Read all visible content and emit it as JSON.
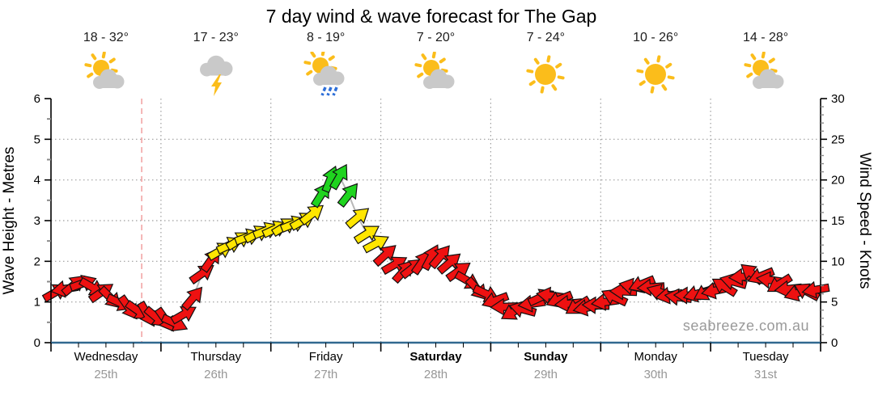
{
  "title": "7 day wind & wave forecast for The Gap",
  "watermark": "seabreeze.com.au",
  "icon_colors": {
    "sun": "#FBBD1B",
    "cloud": "#C9C9C9",
    "rain": "#2E6FD8"
  },
  "days": [
    {
      "name": "Wednesday",
      "date": "25th",
      "temp": "18 - 32°",
      "icon": "partly-cloudy",
      "weekend": false
    },
    {
      "name": "Thursday",
      "date": "26th",
      "temp": "17 - 23°",
      "icon": "thunderstorm",
      "weekend": false
    },
    {
      "name": "Friday",
      "date": "27th",
      "temp": "8 - 19°",
      "icon": "sun-cloud-rain",
      "weekend": false
    },
    {
      "name": "Saturday",
      "date": "28th",
      "temp": "7 - 20°",
      "icon": "partly-cloudy",
      "weekend": true
    },
    {
      "name": "Sunday",
      "date": "29th",
      "temp": "7 - 24°",
      "icon": "sunny",
      "weekend": true
    },
    {
      "name": "Monday",
      "date": "30th",
      "temp": "10 - 26°",
      "icon": "sunny",
      "weekend": false
    },
    {
      "name": "Tuesday",
      "date": "31st",
      "temp": "14 - 28°",
      "icon": "partly-cloudy",
      "weekend": false
    }
  ],
  "chart_data": {
    "type": "scatter",
    "marker": "wind-arrow",
    "title": "7 day wind & wave forecast for The Gap",
    "x_axis": {
      "unit": "hours",
      "range": [
        0,
        168
      ],
      "day_boundary_hours": [
        24,
        48,
        72,
        96,
        120,
        144
      ],
      "minor_tick_step_hours": 6,
      "major_tick_step_hours": 24
    },
    "left_axis": {
      "label": "Wave Height - Metres",
      "range": [
        0,
        6
      ],
      "ticks": [
        0,
        1,
        2,
        3,
        4,
        5,
        6
      ]
    },
    "right_axis": {
      "label": "Wind Speed - Knots",
      "range": [
        0,
        30
      ],
      "ticks": [
        0,
        5,
        10,
        15,
        20,
        25,
        30
      ]
    },
    "now_hour": 19.8,
    "grid": true,
    "colors": {
      "red": "#ee1111",
      "yellow": "#ffe600",
      "green": "#1fd41f",
      "arrow_outline": "#111111",
      "axis": "#000000",
      "axis_bottom": "#31698f",
      "grid": "#9e9e9e",
      "now_line": "#f2a6a6",
      "connector": "#b8b8b8"
    },
    "color_scale": [
      {
        "max_knots": 11,
        "color": "red"
      },
      {
        "max_knots": 16.5,
        "color": "yellow"
      },
      {
        "max_knots": 99,
        "color": "green"
      }
    ],
    "arrows_format": [
      "hour",
      "wind_knots",
      "rotation_deg_0_is_east_negative_up"
    ],
    "arrows": [
      [
        1,
        6.2,
        -30
      ],
      [
        3,
        6.6,
        170
      ],
      [
        5,
        7.1,
        -40
      ],
      [
        7,
        7.3,
        -20
      ],
      [
        9,
        6.8,
        30
      ],
      [
        11,
        6.2,
        -35
      ],
      [
        13,
        5.5,
        45
      ],
      [
        15,
        4.9,
        25
      ],
      [
        17,
        4.3,
        55
      ],
      [
        19,
        3.9,
        35
      ],
      [
        21,
        3.5,
        60
      ],
      [
        23,
        3.1,
        40
      ],
      [
        25,
        2.8,
        55
      ],
      [
        27,
        2.4,
        25
      ],
      [
        29,
        3.5,
        -30
      ],
      [
        31,
        5.5,
        -50
      ],
      [
        33,
        8.5,
        -35
      ],
      [
        35,
        10.2,
        -55
      ],
      [
        37,
        11.3,
        -30
      ],
      [
        39,
        12.0,
        -25
      ],
      [
        41,
        12.6,
        -32
      ],
      [
        43,
        13.0,
        -20
      ],
      [
        45,
        13.4,
        -28
      ],
      [
        47,
        13.8,
        -22
      ],
      [
        49,
        14.0,
        -25
      ],
      [
        51,
        14.3,
        -32
      ],
      [
        53,
        14.6,
        -22
      ],
      [
        55,
        15.0,
        -30
      ],
      [
        57,
        15.8,
        -38
      ],
      [
        59,
        18.2,
        -58
      ],
      [
        61,
        20.1,
        -68
      ],
      [
        63,
        20.4,
        -60
      ],
      [
        65,
        18.2,
        -52
      ],
      [
        67,
        15.4,
        -40
      ],
      [
        69,
        13.4,
        -32
      ],
      [
        71,
        12.2,
        -28
      ],
      [
        73,
        10.8,
        -42
      ],
      [
        75,
        9.6,
        -30
      ],
      [
        77,
        8.8,
        -48
      ],
      [
        79,
        9.2,
        -38
      ],
      [
        81,
        9.9,
        -55
      ],
      [
        83,
        10.5,
        -62
      ],
      [
        85,
        10.6,
        -50
      ],
      [
        87,
        9.8,
        -40
      ],
      [
        89,
        8.8,
        -35
      ],
      [
        91,
        7.6,
        30
      ],
      [
        93,
        6.6,
        48
      ],
      [
        95,
        6.0,
        25
      ],
      [
        97,
        5.2,
        160
      ],
      [
        99,
        4.4,
        178
      ],
      [
        101,
        3.8,
        150
      ],
      [
        103,
        4.1,
        -165
      ],
      [
        105,
        4.8,
        172
      ],
      [
        107,
        5.6,
        -25
      ],
      [
        109,
        5.8,
        188
      ],
      [
        111,
        5.3,
        158
      ],
      [
        113,
        4.8,
        175
      ],
      [
        115,
        4.5,
        148
      ],
      [
        117,
        4.3,
        168
      ],
      [
        119,
        4.6,
        182
      ],
      [
        121,
        5.0,
        172
      ],
      [
        123,
        5.6,
        -155
      ],
      [
        125,
        6.3,
        182
      ],
      [
        127,
        6.9,
        -168
      ],
      [
        129,
        7.2,
        158
      ],
      [
        131,
        6.8,
        176
      ],
      [
        133,
        6.2,
        -162
      ],
      [
        135,
        5.8,
        170
      ],
      [
        137,
        5.6,
        188
      ],
      [
        139,
        5.8,
        -178
      ],
      [
        141,
        6.0,
        164
      ],
      [
        143,
        6.2,
        150
      ],
      [
        145,
        6.4,
        168
      ],
      [
        147,
        6.9,
        -148
      ],
      [
        149,
        7.5,
        -165
      ],
      [
        151,
        8.1,
        176
      ],
      [
        153,
        8.5,
        -140
      ],
      [
        155,
        8.2,
        158
      ],
      [
        157,
        7.7,
        -172
      ],
      [
        159,
        7.2,
        148
      ],
      [
        161,
        6.6,
        174
      ],
      [
        163,
        6.1,
        162
      ],
      [
        165,
        6.3,
        -152
      ],
      [
        167,
        6.5,
        170
      ]
    ]
  }
}
